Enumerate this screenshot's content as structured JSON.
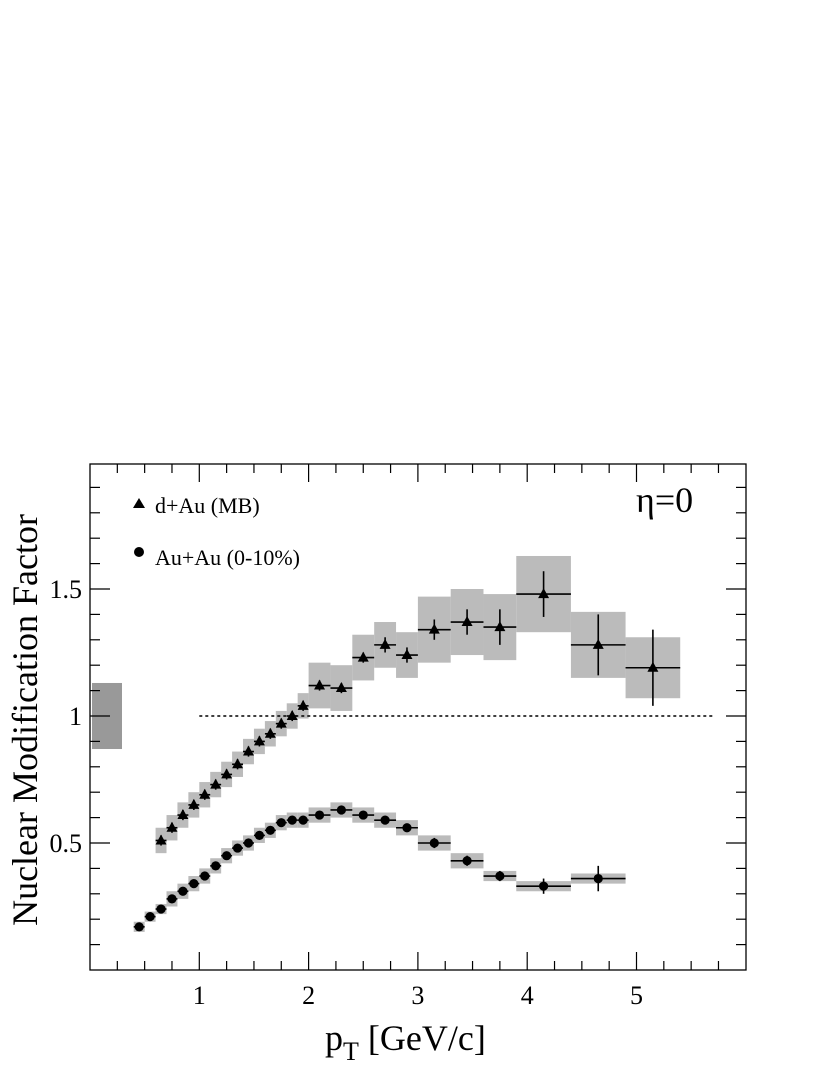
{
  "chart_data": {
    "type": "scatter",
    "xlabel_main": "p",
    "xlabel_sub": "T",
    "xlabel_rest": " [GeV/c]",
    "ylabel": "Nuclear Modification Factor",
    "xlim": [
      0,
      5.0
    ],
    "ylim": [
      0.0,
      2.0
    ],
    "x_ticks": [
      1,
      2,
      3,
      4,
      5
    ],
    "y_ticks": [
      0.5,
      1,
      1.5
    ],
    "y_tick_labels": [
      "0.5",
      "1",
      "1.5"
    ],
    "annotation": "η=0",
    "reference_line": {
      "y": 1.0,
      "x_from": 1.0,
      "x_to": 5.7,
      "style": "dotted"
    },
    "normalization_box": {
      "y_low": 0.87,
      "y_high": 1.13,
      "color": "#999999"
    },
    "box_color": "#bbbbbb",
    "legend_position": "top-left",
    "series": [
      {
        "name": "d+Au (MB)",
        "marker": "triangle",
        "points": [
          {
            "x": 0.65,
            "y": 0.51,
            "xerr": 0.05,
            "yerr": 0.02,
            "sys": 0.05
          },
          {
            "x": 0.75,
            "y": 0.56,
            "xerr": 0.05,
            "yerr": 0.02,
            "sys": 0.05
          },
          {
            "x": 0.85,
            "y": 0.61,
            "xerr": 0.05,
            "yerr": 0.02,
            "sys": 0.05
          },
          {
            "x": 0.95,
            "y": 0.65,
            "xerr": 0.05,
            "yerr": 0.02,
            "sys": 0.05
          },
          {
            "x": 1.05,
            "y": 0.69,
            "xerr": 0.05,
            "yerr": 0.02,
            "sys": 0.05
          },
          {
            "x": 1.15,
            "y": 0.73,
            "xerr": 0.05,
            "yerr": 0.02,
            "sys": 0.05
          },
          {
            "x": 1.25,
            "y": 0.77,
            "xerr": 0.05,
            "yerr": 0.02,
            "sys": 0.05
          },
          {
            "x": 1.35,
            "y": 0.81,
            "xerr": 0.05,
            "yerr": 0.02,
            "sys": 0.05
          },
          {
            "x": 1.45,
            "y": 0.86,
            "xerr": 0.05,
            "yerr": 0.02,
            "sys": 0.05
          },
          {
            "x": 1.55,
            "y": 0.9,
            "xerr": 0.05,
            "yerr": 0.02,
            "sys": 0.05
          },
          {
            "x": 1.65,
            "y": 0.93,
            "xerr": 0.05,
            "yerr": 0.02,
            "sys": 0.05
          },
          {
            "x": 1.75,
            "y": 0.97,
            "xerr": 0.05,
            "yerr": 0.02,
            "sys": 0.05
          },
          {
            "x": 1.85,
            "y": 1.0,
            "xerr": 0.05,
            "yerr": 0.02,
            "sys": 0.05
          },
          {
            "x": 1.95,
            "y": 1.04,
            "xerr": 0.05,
            "yerr": 0.02,
            "sys": 0.05
          },
          {
            "x": 2.1,
            "y": 1.12,
            "xerr": 0.1,
            "yerr": 0.02,
            "sys": 0.09
          },
          {
            "x": 2.3,
            "y": 1.11,
            "xerr": 0.1,
            "yerr": 0.02,
            "sys": 0.09
          },
          {
            "x": 2.5,
            "y": 1.23,
            "xerr": 0.1,
            "yerr": 0.02,
            "sys": 0.09
          },
          {
            "x": 2.7,
            "y": 1.28,
            "xerr": 0.1,
            "yerr": 0.03,
            "sys": 0.09
          },
          {
            "x": 2.9,
            "y": 1.24,
            "xerr": 0.1,
            "yerr": 0.03,
            "sys": 0.09
          },
          {
            "x": 3.15,
            "y": 1.34,
            "xerr": 0.15,
            "yerr": 0.04,
            "sys": 0.13
          },
          {
            "x": 3.45,
            "y": 1.37,
            "xerr": 0.15,
            "yerr": 0.05,
            "sys": 0.13
          },
          {
            "x": 3.75,
            "y": 1.35,
            "xerr": 0.15,
            "yerr": 0.07,
            "sys": 0.13
          },
          {
            "x": 4.15,
            "y": 1.48,
            "xerr": 0.25,
            "yerr": 0.09,
            "sys": 0.15
          },
          {
            "x": 4.65,
            "y": 1.28,
            "xerr": 0.25,
            "yerr": 0.12,
            "sys": 0.13
          },
          {
            "x": 5.15,
            "y": 1.19,
            "xerr": 0.25,
            "yerr": 0.15,
            "sys": 0.12
          }
        ]
      },
      {
        "name": "Au+Au (0-10%)",
        "marker": "circle",
        "points": [
          {
            "x": 0.45,
            "y": 0.17,
            "xerr": 0.05,
            "yerr": 0.01,
            "sys": 0.02
          },
          {
            "x": 0.55,
            "y": 0.21,
            "xerr": 0.05,
            "yerr": 0.01,
            "sys": 0.02
          },
          {
            "x": 0.65,
            "y": 0.24,
            "xerr": 0.05,
            "yerr": 0.01,
            "sys": 0.02
          },
          {
            "x": 0.75,
            "y": 0.28,
            "xerr": 0.05,
            "yerr": 0.01,
            "sys": 0.03
          },
          {
            "x": 0.85,
            "y": 0.31,
            "xerr": 0.05,
            "yerr": 0.01,
            "sys": 0.03
          },
          {
            "x": 0.95,
            "y": 0.34,
            "xerr": 0.05,
            "yerr": 0.01,
            "sys": 0.03
          },
          {
            "x": 1.05,
            "y": 0.37,
            "xerr": 0.05,
            "yerr": 0.01,
            "sys": 0.03
          },
          {
            "x": 1.15,
            "y": 0.41,
            "xerr": 0.05,
            "yerr": 0.01,
            "sys": 0.03
          },
          {
            "x": 1.25,
            "y": 0.45,
            "xerr": 0.05,
            "yerr": 0.01,
            "sys": 0.03
          },
          {
            "x": 1.35,
            "y": 0.48,
            "xerr": 0.05,
            "yerr": 0.01,
            "sys": 0.03
          },
          {
            "x": 1.45,
            "y": 0.5,
            "xerr": 0.05,
            "yerr": 0.01,
            "sys": 0.03
          },
          {
            "x": 1.55,
            "y": 0.53,
            "xerr": 0.05,
            "yerr": 0.01,
            "sys": 0.03
          },
          {
            "x": 1.65,
            "y": 0.55,
            "xerr": 0.05,
            "yerr": 0.01,
            "sys": 0.03
          },
          {
            "x": 1.75,
            "y": 0.58,
            "xerr": 0.05,
            "yerr": 0.01,
            "sys": 0.03
          },
          {
            "x": 1.85,
            "y": 0.59,
            "xerr": 0.05,
            "yerr": 0.01,
            "sys": 0.03
          },
          {
            "x": 1.95,
            "y": 0.59,
            "xerr": 0.05,
            "yerr": 0.01,
            "sys": 0.03
          },
          {
            "x": 2.1,
            "y": 0.61,
            "xerr": 0.1,
            "yerr": 0.01,
            "sys": 0.03
          },
          {
            "x": 2.3,
            "y": 0.63,
            "xerr": 0.1,
            "yerr": 0.01,
            "sys": 0.03
          },
          {
            "x": 2.5,
            "y": 0.61,
            "xerr": 0.1,
            "yerr": 0.01,
            "sys": 0.03
          },
          {
            "x": 2.7,
            "y": 0.59,
            "xerr": 0.1,
            "yerr": 0.01,
            "sys": 0.03
          },
          {
            "x": 2.9,
            "y": 0.56,
            "xerr": 0.1,
            "yerr": 0.01,
            "sys": 0.03
          },
          {
            "x": 3.15,
            "y": 0.5,
            "xerr": 0.15,
            "yerr": 0.02,
            "sys": 0.03
          },
          {
            "x": 3.45,
            "y": 0.43,
            "xerr": 0.15,
            "yerr": 0.02,
            "sys": 0.03
          },
          {
            "x": 3.75,
            "y": 0.37,
            "xerr": 0.15,
            "yerr": 0.02,
            "sys": 0.02
          },
          {
            "x": 4.15,
            "y": 0.33,
            "xerr": 0.25,
            "yerr": 0.03,
            "sys": 0.02
          },
          {
            "x": 4.65,
            "y": 0.36,
            "xerr": 0.25,
            "yerr": 0.05,
            "sys": 0.02
          }
        ]
      }
    ]
  }
}
